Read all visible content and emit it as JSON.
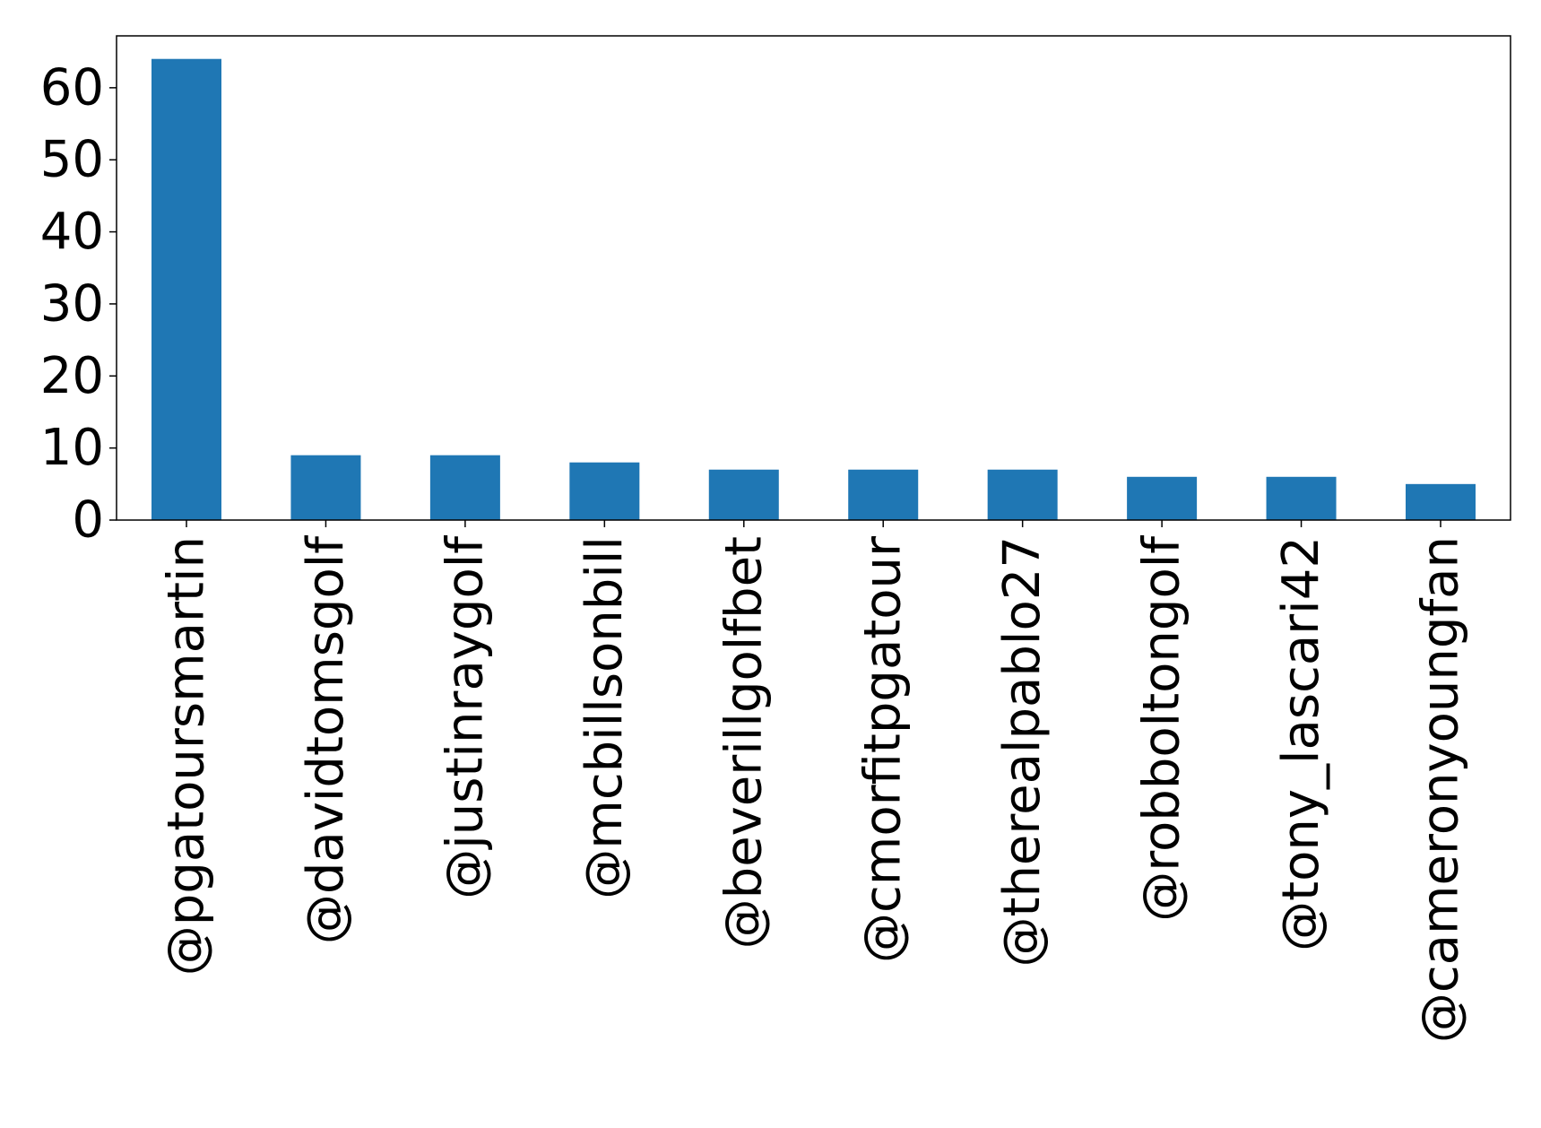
{
  "chart_data": {
    "type": "bar",
    "categories": [
      "@pgatoursmartin",
      "@davidtomsgolf",
      "@justinraygolf",
      "@mcbillsonbill",
      "@beverillgolfbet",
      "@cmorfitpgatour",
      "@therealpablo27",
      "@robboltongolf",
      "@tony_lascari42",
      "@cameronyoungfan"
    ],
    "values": [
      64,
      9,
      9,
      8,
      7,
      7,
      7,
      6,
      6,
      5
    ],
    "ylim": [
      0,
      67.2
    ],
    "yticks": [
      0,
      10,
      20,
      30,
      40,
      50,
      60
    ],
    "bar_color": "#1f77b4",
    "grid": false,
    "legend": "none"
  }
}
